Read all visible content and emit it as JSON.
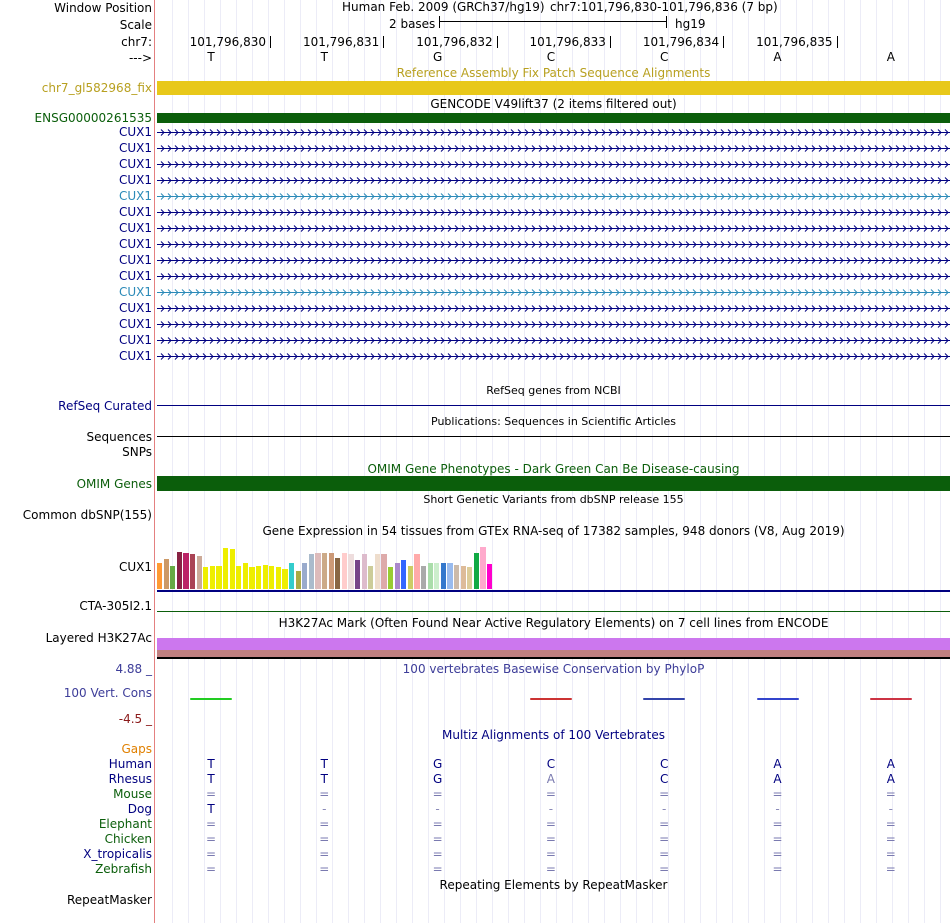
{
  "header": {
    "window_position_label": "Window Position",
    "scale_label": "Scale",
    "chrom_label": "chr7:",
    "strand_label": "--->",
    "assembly": "Human Feb. 2009 (GRCh37/hg19)",
    "position": "chr7:101,796,830-101,796,836 (7 bp)",
    "scale_text": "2 bases",
    "db": "hg19",
    "coords": [
      "101,796,830",
      "101,796,831",
      "101,796,832",
      "101,796,833",
      "101,796,834",
      "101,796,835"
    ],
    "bases": [
      "T",
      "T",
      "G",
      "C",
      "C",
      "A",
      "A"
    ]
  },
  "fix_patch": {
    "title": "Reference Assembly Fix Patch Sequence Alignments",
    "label": "chr7_gl582968_fix",
    "color": "#e8c81a"
  },
  "gencode": {
    "title": "GENCODE V49lift37 (2 items filtered out)",
    "first_item": "ENSG00000261535",
    "first_color": "#0b5e0b",
    "items": [
      {
        "label": "CUX1",
        "color": "#000080"
      },
      {
        "label": "CUX1",
        "color": "#000080"
      },
      {
        "label": "CUX1",
        "color": "#000080"
      },
      {
        "label": "CUX1",
        "color": "#000080"
      },
      {
        "label": "CUX1",
        "color": "#2b8ab8"
      },
      {
        "label": "CUX1",
        "color": "#000080"
      },
      {
        "label": "CUX1",
        "color": "#000080"
      },
      {
        "label": "CUX1",
        "color": "#000080"
      },
      {
        "label": "CUX1",
        "color": "#000080"
      },
      {
        "label": "CUX1",
        "color": "#000080"
      },
      {
        "label": "CUX1",
        "color": "#2b8ab8"
      },
      {
        "label": "CUX1",
        "color": "#000080"
      },
      {
        "label": "CUX1",
        "color": "#000080"
      },
      {
        "label": "CUX1",
        "color": "#000080"
      },
      {
        "label": "CUX1",
        "color": "#000080"
      }
    ]
  },
  "refseq": {
    "title": "RefSeq genes from NCBI",
    "label": "RefSeq Curated"
  },
  "publications": {
    "title": "Publications: Sequences in Scientific Articles",
    "label1": "Sequences",
    "label2": "SNPs"
  },
  "omim": {
    "title": "OMIM Gene Phenotypes - Dark Green Can Be Disease-causing",
    "label": "OMIM Genes",
    "color": "#0b5e0b"
  },
  "dbsnp": {
    "title": "Short Genetic Variants from dbSNP release 155",
    "label": "Common dbSNP(155)"
  },
  "gtex": {
    "title": "Gene Expression in 54 tissues from GTEx RNA-seq of 17382 samples, 948 donors (V8, Aug 2019)",
    "label1": "CUX1",
    "label2": "CTA-305I2.1",
    "bars": [
      {
        "v": 0.55,
        "c": "#ff9933"
      },
      {
        "v": 0.62,
        "c": "#cc9966"
      },
      {
        "v": 0.48,
        "c": "#66aa44"
      },
      {
        "v": 0.78,
        "c": "#882244"
      },
      {
        "v": 0.75,
        "c": "#bb2266"
      },
      {
        "v": 0.72,
        "c": "#aa4455"
      },
      {
        "v": 0.68,
        "c": "#ccaa99"
      },
      {
        "v": 0.45,
        "c": "#eeee00"
      },
      {
        "v": 0.48,
        "c": "#eeee00"
      },
      {
        "v": 0.48,
        "c": "#eeee00"
      },
      {
        "v": 0.85,
        "c": "#eeee00"
      },
      {
        "v": 0.83,
        "c": "#eeee00"
      },
      {
        "v": 0.48,
        "c": "#eeee00"
      },
      {
        "v": 0.55,
        "c": "#eeee00"
      },
      {
        "v": 0.45,
        "c": "#eeee00"
      },
      {
        "v": 0.48,
        "c": "#eeee00"
      },
      {
        "v": 0.5,
        "c": "#eeee00"
      },
      {
        "v": 0.48,
        "c": "#eeee00"
      },
      {
        "v": 0.45,
        "c": "#eeee00"
      },
      {
        "v": 0.42,
        "c": "#eeee00"
      },
      {
        "v": 0.55,
        "c": "#33cccc"
      },
      {
        "v": 0.38,
        "c": "#aaaa44"
      },
      {
        "v": 0.55,
        "c": "#99aacc"
      },
      {
        "v": 0.72,
        "c": "#aabbcc"
      },
      {
        "v": 0.75,
        "c": "#ddbbbb"
      },
      {
        "v": 0.75,
        "c": "#ccaa88"
      },
      {
        "v": 0.75,
        "c": "#cc9977"
      },
      {
        "v": 0.65,
        "c": "#886644"
      },
      {
        "v": 0.75,
        "c": "#ffcccc"
      },
      {
        "v": 0.72,
        "c": "#eedddd"
      },
      {
        "v": 0.6,
        "c": "#774488"
      },
      {
        "v": 0.72,
        "c": "#ddbbcc"
      },
      {
        "v": 0.48,
        "c": "#cccc99"
      },
      {
        "v": 0.72,
        "c": "#eeddcc"
      },
      {
        "v": 0.72,
        "c": "#ddaaaa"
      },
      {
        "v": 0.45,
        "c": "#99cc33"
      },
      {
        "v": 0.55,
        "c": "#aa88cc"
      },
      {
        "v": 0.6,
        "c": "#3366ff"
      },
      {
        "v": 0.48,
        "c": "#cccc66"
      },
      {
        "v": 0.72,
        "c": "#ffaaaa"
      },
      {
        "v": 0.48,
        "c": "#aaaaaa"
      },
      {
        "v": 0.55,
        "c": "#aaddaa"
      },
      {
        "v": 0.55,
        "c": "#cceecc"
      },
      {
        "v": 0.55,
        "c": "#3377cc"
      },
      {
        "v": 0.55,
        "c": "#99bbee"
      },
      {
        "v": 0.5,
        "c": "#ccbbaa"
      },
      {
        "v": 0.48,
        "c": "#ddbb99"
      },
      {
        "v": 0.45,
        "c": "#ddcc99"
      },
      {
        "v": 0.75,
        "c": "#11aa44"
      },
      {
        "v": 0.88,
        "c": "#ffaacc"
      },
      {
        "v": 0.52,
        "c": "#ff00cc"
      }
    ]
  },
  "h3k27ac": {
    "title": "H3K27Ac Mark (Often Found Near Active Regulatory Elements) on 7 cell lines from ENCODE",
    "label": "Layered H3K27Ac"
  },
  "phylop": {
    "title": "100 vertebrates Basewise Conservation by PhyloP",
    "label": "100 Vert. Cons",
    "max": "4.88 _",
    "min": "-4.5 _",
    "marks": [
      {
        "base": 0,
        "c": "#22cc22"
      },
      {
        "base": 3,
        "c": "#cc3333"
      },
      {
        "base": 4,
        "c": "#3344aa"
      },
      {
        "base": 5,
        "c": "#3344cc"
      },
      {
        "base": 6,
        "c": "#cc3344"
      }
    ]
  },
  "multiz": {
    "title": "Multiz Alignments of 100 Vertebrates",
    "gaps_label": "Gaps",
    "species": [
      {
        "name": "Human",
        "color": "#000080",
        "bases": [
          "T",
          "T",
          "G",
          "C",
          "C",
          "A",
          "A"
        ]
      },
      {
        "name": "Rhesus",
        "color": "#000080",
        "bases": [
          "T",
          "T",
          "G",
          "A",
          "C",
          "A",
          "A"
        ]
      },
      {
        "name": "Mouse",
        "color": "#0b5e0b",
        "bases": [
          "=",
          "=",
          "=",
          "=",
          "=",
          "=",
          "="
        ]
      },
      {
        "name": "Dog",
        "color": "#000080",
        "bases": [
          "T",
          "-",
          "-",
          "-",
          "-",
          "-",
          "-"
        ]
      },
      {
        "name": "Elephant",
        "color": "#0b5e0b",
        "bases": [
          "=",
          "=",
          "=",
          "=",
          "=",
          "=",
          "="
        ]
      },
      {
        "name": "Chicken",
        "color": "#0b5e0b",
        "bases": [
          "=",
          "=",
          "=",
          "=",
          "=",
          "=",
          "="
        ]
      },
      {
        "name": "X_tropicalis",
        "color": "#000080",
        "bases": [
          "=",
          "=",
          "=",
          "=",
          "=",
          "=",
          "="
        ]
      },
      {
        "name": "Zebrafish",
        "color": "#0b5e0b",
        "bases": [
          "=",
          "=",
          "=",
          "=",
          "=",
          "=",
          "="
        ]
      }
    ]
  },
  "repeatmasker": {
    "title": "Repeating Elements by RepeatMasker",
    "label": "RepeatMasker"
  }
}
